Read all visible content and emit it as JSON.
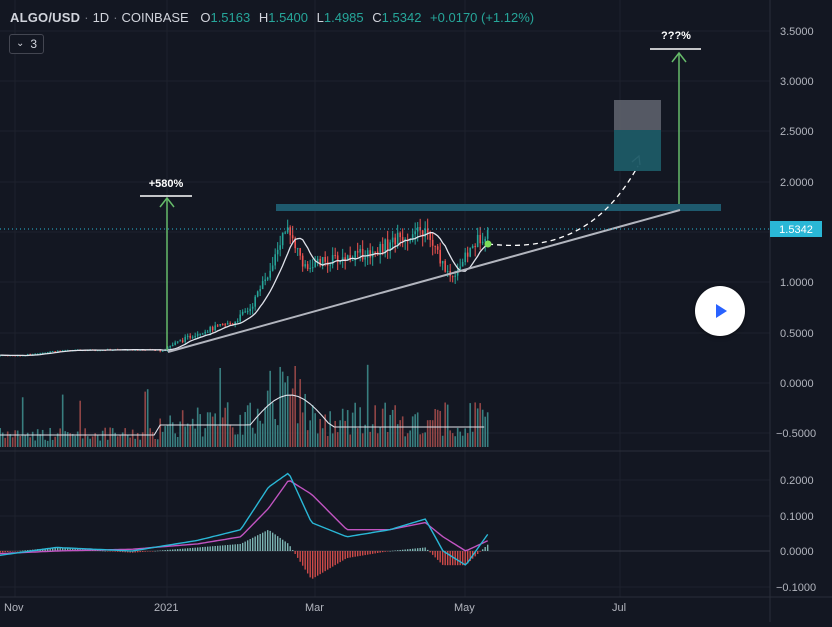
{
  "header": {
    "symbol": "ALGO/USD",
    "interval": "1D",
    "exchange": "COINBASE",
    "open_label": "O",
    "open": "1.5163",
    "high_label": "H",
    "high": "1.5400",
    "low_label": "L",
    "low": "1.4985",
    "close_label": "C",
    "close": "1.5342",
    "change": "+0.0170 (+1.12%)",
    "indicator_count": "3"
  },
  "colors": {
    "background": "#131722",
    "up": "#26a69a",
    "down": "#ef5350",
    "ma": "#e0e3eb",
    "annotation_green": "#66bb6a",
    "trendline": "#b2b5be",
    "resistance": "#1f5e73",
    "macd_line": "#2ab7d6",
    "signal_line": "#c154c1",
    "price_badge": "#2ab7d6"
  },
  "price_axis": {
    "labels": [
      "3.5000",
      "3.0000",
      "2.5000",
      "2.0000",
      "1.5000",
      "1.0000",
      "0.5000",
      "0.0000",
      "−0.5000"
    ],
    "current_price": "1.5342"
  },
  "macd_axis": {
    "labels": [
      "0.2000",
      "0.1000",
      "0.0000",
      "−0.1000"
    ]
  },
  "time_axis": {
    "labels": [
      "Nov",
      "2021",
      "Mar",
      "May",
      "Jul"
    ]
  },
  "annotations": {
    "past_gain": "+580%",
    "projected_gain": "???%"
  },
  "chart_data": {
    "type": "line",
    "series": [
      {
        "name": "ALGO/USD",
        "x": [
          "2020-10-21",
          "2020-11-05",
          "2020-11-20",
          "2020-12-05",
          "2020-12-20",
          "2021-01-01",
          "2021-01-15",
          "2021-01-29",
          "2021-02-05",
          "2021-02-12",
          "2021-02-19",
          "2021-02-26",
          "2021-03-05",
          "2021-03-15",
          "2021-03-25",
          "2021-04-05",
          "2021-04-15",
          "2021-04-25",
          "2021-05-01",
          "2021-05-05",
          "2021-05-10"
        ],
        "values": [
          0.28,
          0.27,
          0.32,
          0.33,
          0.33,
          0.33,
          0.5,
          0.6,
          0.75,
          1.1,
          1.55,
          1.15,
          1.2,
          1.25,
          1.3,
          1.45,
          1.5,
          1.05,
          1.25,
          1.4,
          1.53
        ]
      }
    ],
    "ylim": [
      -0.6,
      3.6
    ],
    "macd": {
      "x": [
        "2020-10-21",
        "2020-11-20",
        "2020-12-20",
        "2021-01-15",
        "2021-02-01",
        "2021-02-12",
        "2021-02-20",
        "2021-03-01",
        "2021-03-15",
        "2021-04-01",
        "2021-04-15",
        "2021-04-22",
        "2021-05-01",
        "2021-05-10"
      ],
      "macd": [
        -0.02,
        0.01,
        0.0,
        0.03,
        0.06,
        0.18,
        0.22,
        0.08,
        0.04,
        0.06,
        0.09,
        0.0,
        -0.04,
        0.05
      ],
      "signal": [
        -0.01,
        0.0,
        0.005,
        0.02,
        0.04,
        0.12,
        0.2,
        0.16,
        0.06,
        0.06,
        0.08,
        0.04,
        0.0,
        0.03
      ],
      "ylim": [
        -0.11,
        0.26
      ]
    }
  }
}
